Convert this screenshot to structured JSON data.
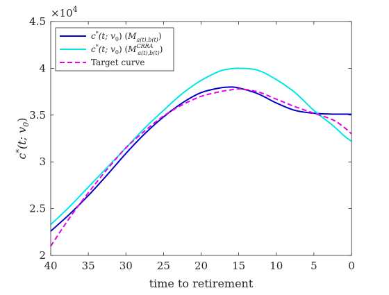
{
  "chart_data": {
    "type": "line",
    "xlabel": "time to retirement",
    "ylabel": "c*(t; v0)",
    "ylabel_parts": {
      "main": "c",
      "star": "*",
      "args": "(t; v",
      "sub": "0",
      "close": ")"
    },
    "exponent_label": {
      "base": "×10",
      "power": "4"
    },
    "xlim": [
      40,
      0
    ],
    "x_reversed": true,
    "ylim": [
      20000,
      45000
    ],
    "x_ticks": [
      40,
      35,
      30,
      25,
      20,
      15,
      10,
      5,
      0
    ],
    "x_tick_labels": [
      "40",
      "35",
      "30",
      "25",
      "20",
      "15",
      "10",
      "5",
      "0"
    ],
    "y_ticks": [
      20000,
      25000,
      30000,
      35000,
      40000,
      45000
    ],
    "y_tick_labels": [
      "2",
      "2.5",
      "3",
      "3.5",
      "4",
      "4.5"
    ],
    "grid": false,
    "legend_position": "top-left",
    "x": [
      40,
      37.5,
      35,
      32.5,
      30,
      27.5,
      25,
      22.5,
      20,
      17.5,
      16,
      15,
      12.5,
      10,
      7.5,
      5,
      2.5,
      1,
      0
    ],
    "series": [
      {
        "name": "c*(t; v0) (M_{a(t),b(t)})",
        "legend": {
          "main": "c",
          "star": "*",
          "args": "(t; v",
          "sub": "0",
          "close": ") (",
          "M": "M",
          "Msup": "",
          "Msub": "a(t),b(t)",
          "end": ")"
        },
        "color": "#0000cc",
        "dash": "solid",
        "values": [
          22600,
          24400,
          26400,
          28600,
          30900,
          33000,
          34800,
          36300,
          37400,
          37900,
          38000,
          37900,
          37300,
          36300,
          35500,
          35200,
          35100,
          35100,
          35100
        ]
      },
      {
        "name": "c*(t; v0) (M^{CRRA}_{a(t),b(t)})",
        "legend": {
          "main": "c",
          "star": "*",
          "args": "(t; v",
          "sub": "0",
          "close": ") (",
          "M": "M",
          "Msup": "CRRA",
          "Msub": "a(t),b(t)",
          "end": ")"
        },
        "color": "#00e6e6",
        "dash": "solid",
        "values": [
          23300,
          25200,
          27300,
          29400,
          31500,
          33600,
          35500,
          37300,
          38700,
          39700,
          39950,
          40000,
          39800,
          38800,
          37400,
          35500,
          33900,
          32800,
          32200
        ]
      },
      {
        "name": "Target curve",
        "legend": {
          "main": "Target curve"
        },
        "color": "#e600e6",
        "dash": "dashed",
        "values": [
          21000,
          24000,
          26700,
          29200,
          31500,
          33300,
          34900,
          36100,
          37000,
          37500,
          37700,
          37800,
          37500,
          36700,
          35900,
          35200,
          34500,
          33700,
          33000
        ]
      }
    ]
  }
}
